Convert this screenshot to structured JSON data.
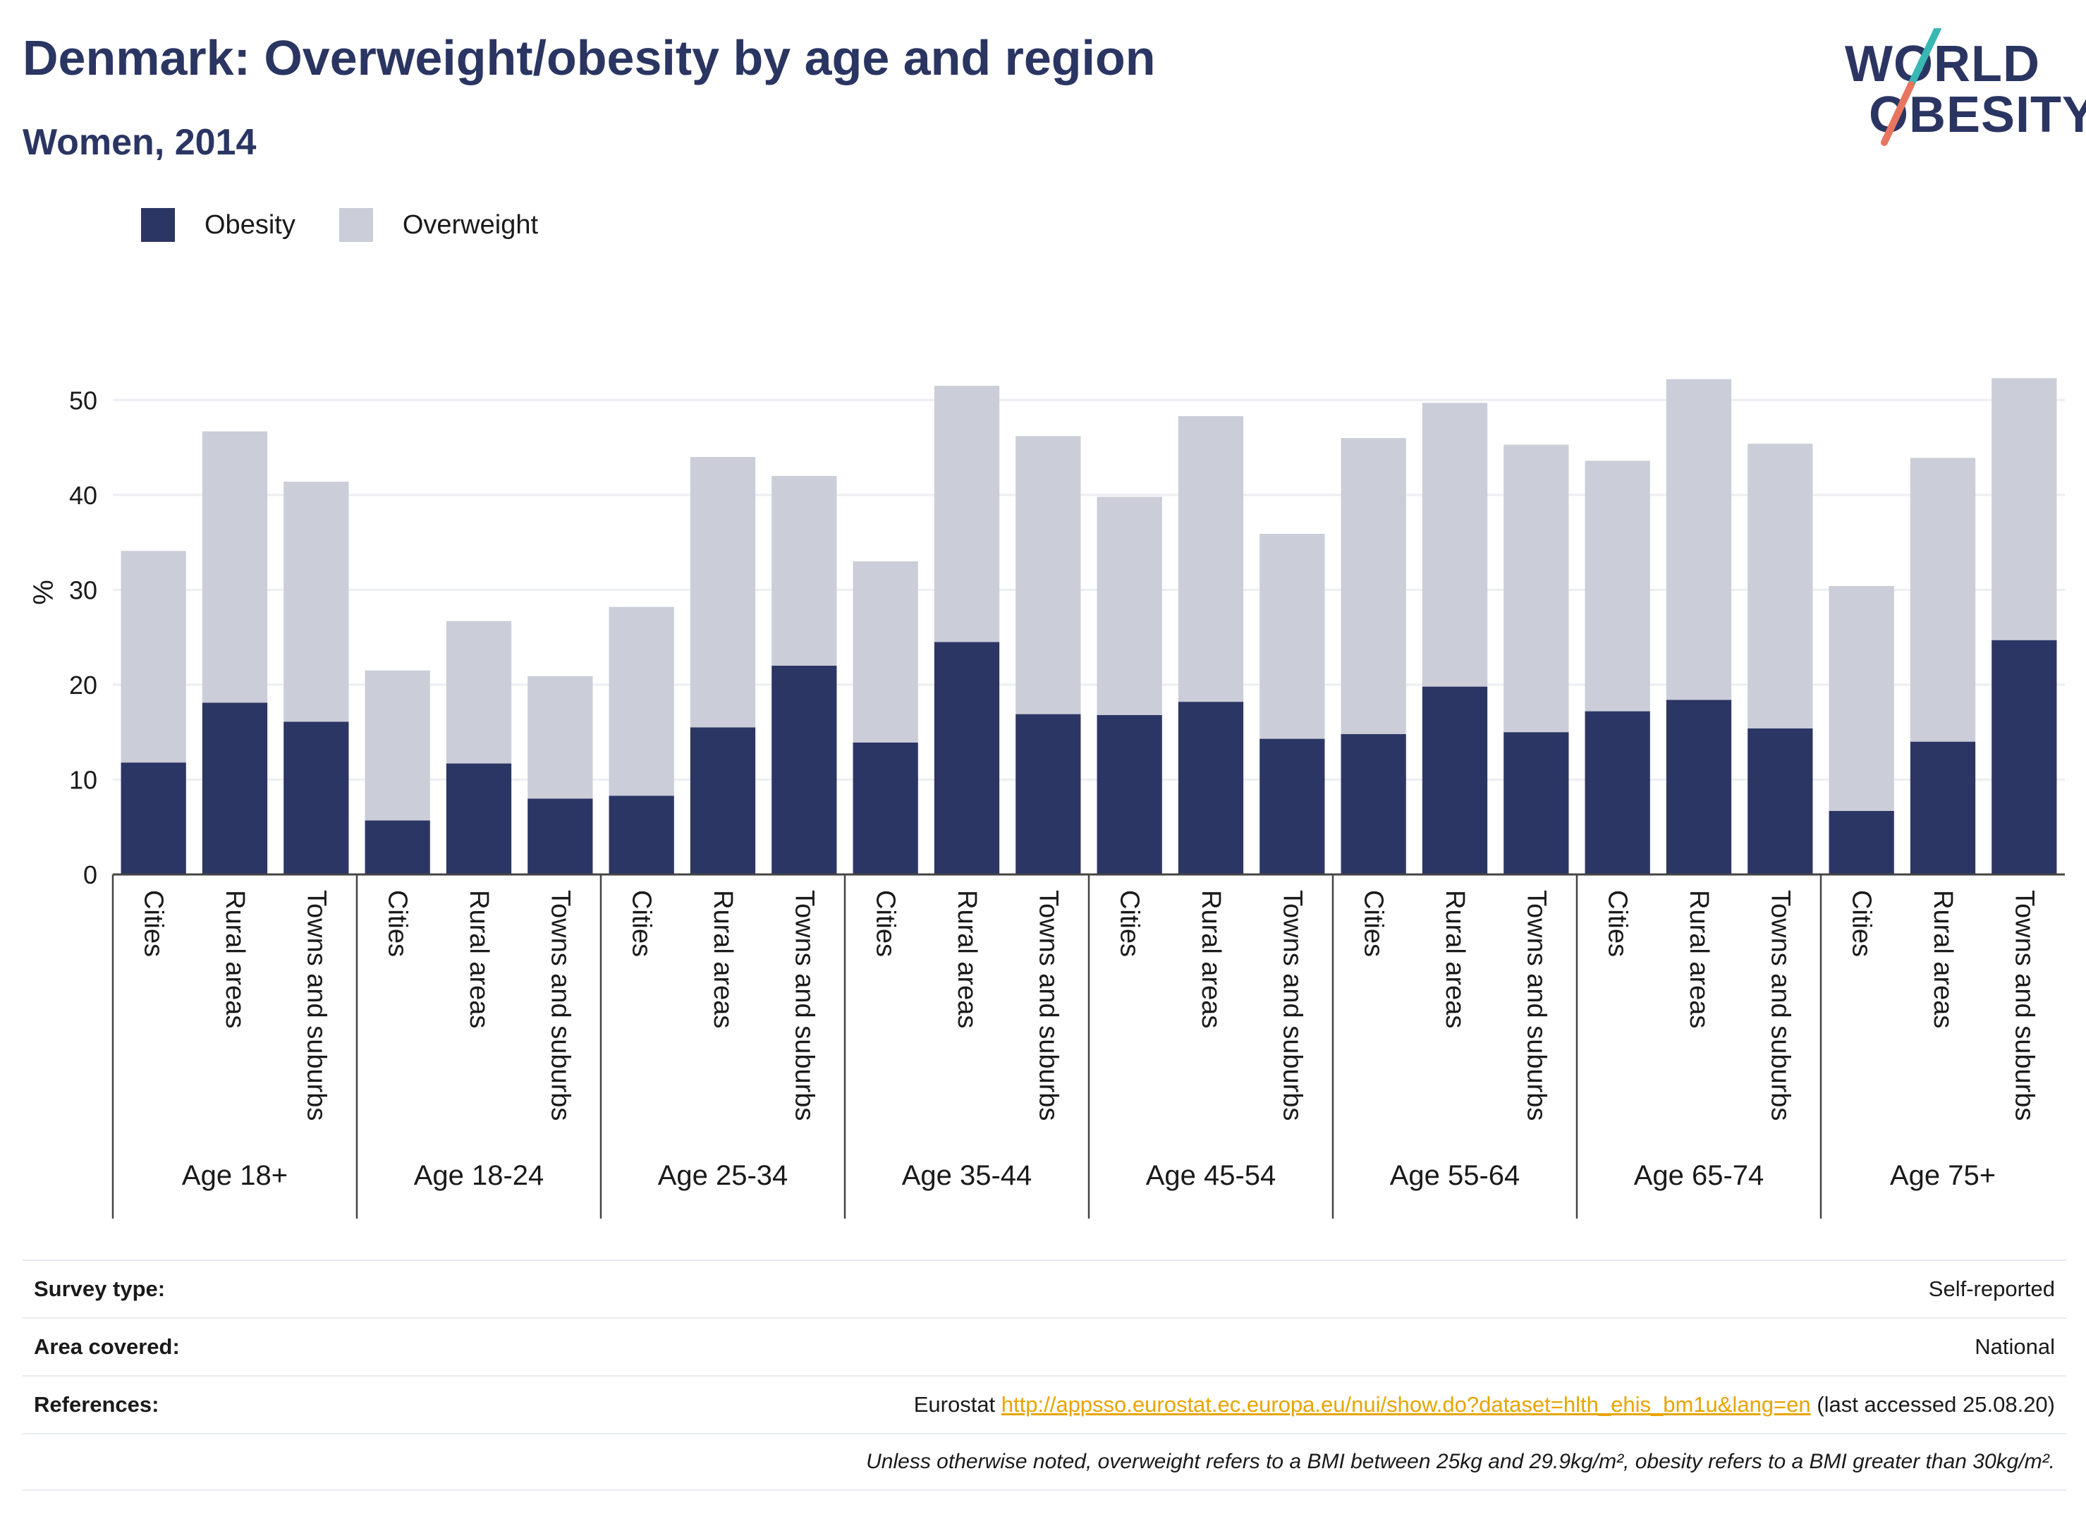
{
  "title": "Denmark: Overweight/obesity by age and region",
  "subtitle": "Women, 2014",
  "logo": {
    "line1": "WORLD",
    "line2": "OBESITY",
    "icon": "slash-logo-icon"
  },
  "colors": {
    "obesity": "#2b3664",
    "overweight": "#cbcdd8",
    "text": "#2a3562",
    "accent_teal": "#38b7b3",
    "accent_coral": "#e8755f"
  },
  "meta": {
    "survey_type_label": "Survey type:",
    "survey_type_value": "Self-reported",
    "area_label": "Area covered:",
    "area_value": "National",
    "references_label": "References:",
    "references_prefix": "Eurostat ",
    "references_link": "http://appsso.eurostat.ec.europa.eu/nui/show.do?dataset=hlth_ehis_bm1u&lang=en",
    "references_suffix": " (last accessed 25.08.20)",
    "note": "Unless otherwise noted, overweight refers to a BMI between 25kg and 29.9kg/m², obesity refers to a BMI greater than 30kg/m²."
  },
  "chart_data": {
    "type": "bar",
    "stacked": true,
    "ylabel": "%",
    "ylim": [
      0,
      55
    ],
    "yticks": [
      0,
      10,
      20,
      30,
      40,
      50
    ],
    "grid": true,
    "legend_position": "top-left",
    "groups": [
      "Age 18+",
      "Age 18-24",
      "Age 25-34",
      "Age 35-44",
      "Age 45-54",
      "Age 55-64",
      "Age 65-74",
      "Age 75+"
    ],
    "categories": [
      "Cities",
      "Rural areas",
      "Towns and suburbs"
    ],
    "series": [
      {
        "name": "Obesity",
        "values": [
          [
            11.8,
            18.1,
            16.1
          ],
          [
            5.7,
            11.7,
            8.0
          ],
          [
            8.3,
            15.5,
            22.0
          ],
          [
            13.9,
            24.5,
            16.9
          ],
          [
            16.8,
            18.2,
            14.3
          ],
          [
            14.8,
            19.8,
            15.0
          ],
          [
            17.2,
            18.4,
            15.4
          ],
          [
            6.7,
            14.0,
            24.7
          ]
        ]
      },
      {
        "name": "Overweight",
        "values": [
          [
            22.3,
            28.6,
            25.3
          ],
          [
            15.8,
            15.0,
            12.9
          ],
          [
            19.9,
            28.5,
            20.0
          ],
          [
            19.1,
            27.0,
            29.3
          ],
          [
            23.0,
            30.1,
            21.6
          ],
          [
            31.2,
            29.9,
            30.3
          ],
          [
            26.4,
            33.8,
            30.0
          ],
          [
            23.7,
            29.9,
            27.6
          ]
        ]
      }
    ]
  }
}
